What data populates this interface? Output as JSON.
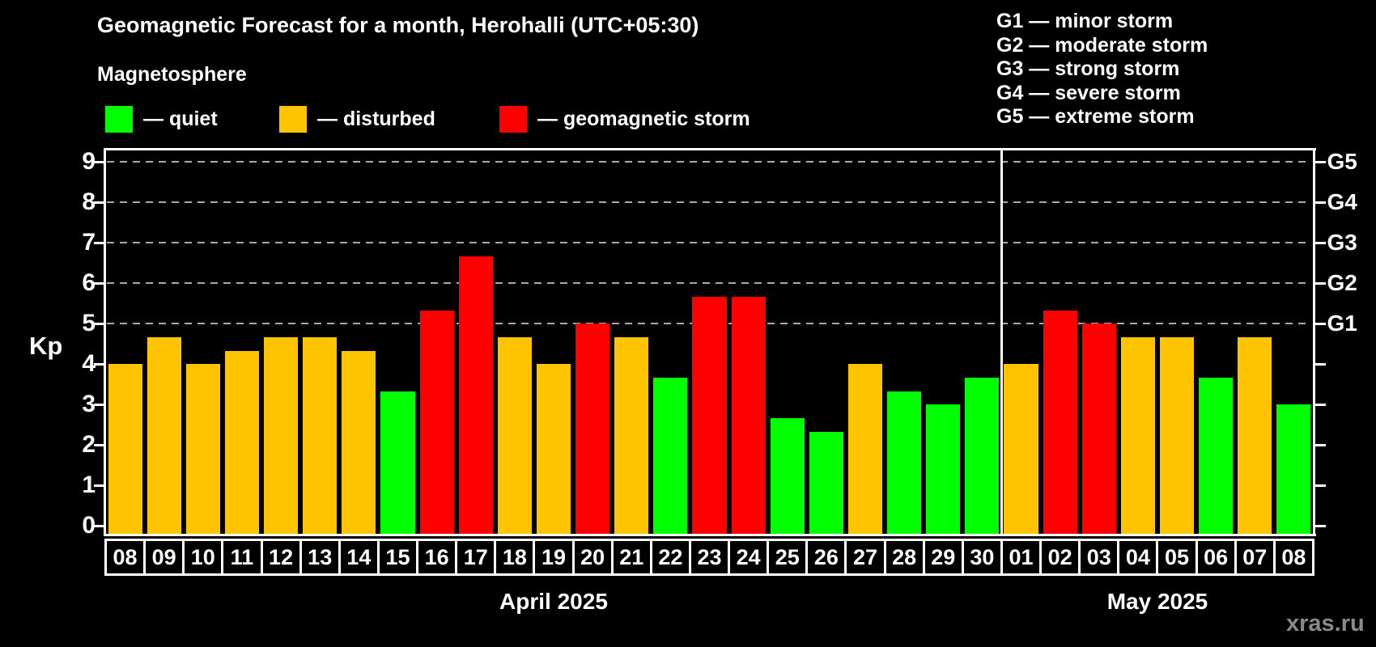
{
  "header": {
    "title": "Geomagnetic Forecast for a month, Herohalli (UTC+05:30)",
    "subtitle": "Magnetosphere"
  },
  "legend": {
    "items": [
      {
        "key": "quiet",
        "swatch": "#00ff00",
        "label": "— quiet"
      },
      {
        "key": "disturbed",
        "swatch": "#ffc400",
        "label": "— disturbed"
      },
      {
        "key": "storm",
        "swatch": "#ff0000",
        "label": "— geomagnetic storm"
      }
    ]
  },
  "g_legend": {
    "items": [
      "G1 — minor storm",
      "G2 — moderate storm",
      "G3 — strong storm",
      "G4 — severe storm",
      "G5 — extreme storm"
    ]
  },
  "watermark": "xras.ru",
  "chart_data": {
    "type": "bar",
    "title": "Geomagnetic Forecast for a month, Herohalli (UTC+05:30)",
    "subtitle": "Magnetosphere",
    "ylabel": "Kp",
    "ylim": [
      0,
      9.4
    ],
    "y_ticks": [
      0,
      1,
      2,
      3,
      4,
      5,
      6,
      7,
      8,
      9
    ],
    "grid": "dashed horizontal gridlines at Kp 5,6,7,8,9",
    "gridline_kp": [
      5,
      6,
      7,
      8,
      9
    ],
    "right_axis_labels": [
      {
        "label": "G1",
        "kp": 5
      },
      {
        "label": "G2",
        "kp": 6
      },
      {
        "label": "G3",
        "kp": 7
      },
      {
        "label": "G4",
        "kp": 8
      },
      {
        "label": "G5",
        "kp": 9
      }
    ],
    "colors": {
      "quiet": "#00ff00",
      "disturbed": "#ffc400",
      "storm": "#ff0000"
    },
    "months": [
      {
        "label": "April 2025",
        "days": 23
      },
      {
        "label": "May 2025",
        "days": 8
      }
    ],
    "bars": [
      {
        "day": "08",
        "month": "April 2025",
        "kp": 4.0,
        "level": "disturbed"
      },
      {
        "day": "09",
        "month": "April 2025",
        "kp": 4.67,
        "level": "disturbed"
      },
      {
        "day": "10",
        "month": "April 2025",
        "kp": 4.0,
        "level": "disturbed"
      },
      {
        "day": "11",
        "month": "April 2025",
        "kp": 4.33,
        "level": "disturbed"
      },
      {
        "day": "12",
        "month": "April 2025",
        "kp": 4.67,
        "level": "disturbed"
      },
      {
        "day": "13",
        "month": "April 2025",
        "kp": 4.67,
        "level": "disturbed"
      },
      {
        "day": "14",
        "month": "April 2025",
        "kp": 4.33,
        "level": "disturbed"
      },
      {
        "day": "15",
        "month": "April 2025",
        "kp": 3.33,
        "level": "quiet"
      },
      {
        "day": "16",
        "month": "April 2025",
        "kp": 5.33,
        "level": "storm"
      },
      {
        "day": "17",
        "month": "April 2025",
        "kp": 6.67,
        "level": "storm"
      },
      {
        "day": "18",
        "month": "April 2025",
        "kp": 4.67,
        "level": "disturbed"
      },
      {
        "day": "19",
        "month": "April 2025",
        "kp": 4.0,
        "level": "disturbed"
      },
      {
        "day": "20",
        "month": "April 2025",
        "kp": 5.0,
        "level": "storm"
      },
      {
        "day": "21",
        "month": "April 2025",
        "kp": 4.67,
        "level": "disturbed"
      },
      {
        "day": "22",
        "month": "April 2025",
        "kp": 3.67,
        "level": "quiet"
      },
      {
        "day": "23",
        "month": "April 2025",
        "kp": 5.67,
        "level": "storm"
      },
      {
        "day": "24",
        "month": "April 2025",
        "kp": 5.67,
        "level": "storm"
      },
      {
        "day": "25",
        "month": "April 2025",
        "kp": 2.67,
        "level": "quiet"
      },
      {
        "day": "26",
        "month": "April 2025",
        "kp": 2.33,
        "level": "quiet"
      },
      {
        "day": "27",
        "month": "April 2025",
        "kp": 4.0,
        "level": "disturbed"
      },
      {
        "day": "28",
        "month": "April 2025",
        "kp": 3.33,
        "level": "quiet"
      },
      {
        "day": "29",
        "month": "April 2025",
        "kp": 3.0,
        "level": "quiet"
      },
      {
        "day": "30",
        "month": "April 2025",
        "kp": 3.67,
        "level": "quiet"
      },
      {
        "day": "01",
        "month": "May 2025",
        "kp": 4.0,
        "level": "disturbed"
      },
      {
        "day": "02",
        "month": "May 2025",
        "kp": 5.33,
        "level": "storm"
      },
      {
        "day": "03",
        "month": "May 2025",
        "kp": 5.0,
        "level": "storm"
      },
      {
        "day": "04",
        "month": "May 2025",
        "kp": 4.67,
        "level": "disturbed"
      },
      {
        "day": "05",
        "month": "May 2025",
        "kp": 4.67,
        "level": "disturbed"
      },
      {
        "day": "06",
        "month": "May 2025",
        "kp": 3.67,
        "level": "quiet"
      },
      {
        "day": "07",
        "month": "May 2025",
        "kp": 4.67,
        "level": "disturbed"
      },
      {
        "day": "08",
        "month": "May 2025",
        "kp": 3.0,
        "level": "quiet"
      }
    ]
  }
}
